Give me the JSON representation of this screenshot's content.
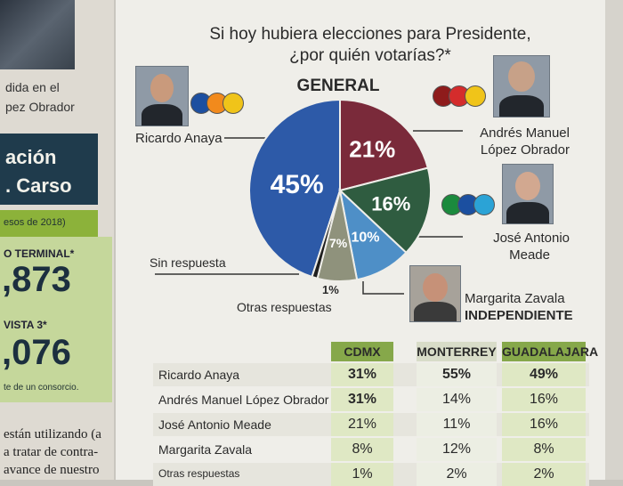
{
  "left_column": {
    "caption_lines": [
      "dida en el",
      "pez Obrador"
    ],
    "header_lines": [
      "ación",
      ". Carso"
    ],
    "subnote": "esos de 2018)",
    "stat1_label": "O TERMINAL*",
    "stat1_value": ",873",
    "stat2_label": "VISTA 3*",
    "stat2_value": ",076",
    "stat2_note": "te de un consorcio.",
    "body_lines": [
      "están utilizando (a",
      "a tratar de contra-",
      "avance de nuestro"
    ]
  },
  "chart_data": {
    "type": "pie",
    "title_lines": [
      "Si hoy hubiera elecciones para Presidente,",
      "¿por quién votarías?*"
    ],
    "subtitle": "GENERAL",
    "slices": [
      {
        "label": "Ricardo Anaya",
        "value": 45,
        "display": "45%",
        "color": "#2d5aa8"
      },
      {
        "label": "Andrés Manuel López Obrador",
        "value": 21,
        "display": "21%",
        "color": "#7a2a3a"
      },
      {
        "label": "José Antonio Meade",
        "value": 16,
        "display": "16%",
        "color": "#2f5c40"
      },
      {
        "label": "Margarita Zavala",
        "value": 10,
        "display": "10%",
        "color": "#4e8fc7"
      },
      {
        "label": "Sin respuesta",
        "value": 7,
        "display": "7%",
        "color": "#8f927c"
      },
      {
        "label": "Otras respuestas",
        "value": 1,
        "display": "1%",
        "color": "#1e1e1e"
      }
    ],
    "callouts": {
      "anaya": "Ricardo Anaya",
      "amlo_lines": [
        "Andrés Manuel",
        "López Obrador"
      ],
      "meade_lines": [
        "José Antonio",
        "Meade"
      ],
      "zavala_lines": [
        "Margarita Zavala",
        "INDEPENDIENTE"
      ],
      "sin": "Sin respuesta",
      "otras": "Otras respuestas",
      "otras_value": "1%"
    },
    "party_logo_colors": {
      "anaya": [
        "#1d4fa0",
        "#f28a1c",
        "#f0c419"
      ],
      "amlo": [
        "#8e1b1b",
        "#d42c2c",
        "#f0c419"
      ],
      "meade": [
        "#1b8a3d",
        "#1b4fa0",
        "#2ba3d6"
      ]
    },
    "table": {
      "columns": [
        "CDMX",
        "MONTERREY",
        "GUADALAJARA"
      ],
      "rows": [
        {
          "name": "Ricardo Anaya",
          "values": [
            "31%",
            "55%",
            "49%"
          ]
        },
        {
          "name": "Andrés Manuel López Obrador",
          "values": [
            "31%",
            "14%",
            "16%"
          ]
        },
        {
          "name": "José Antonio Meade",
          "values": [
            "21%",
            "11%",
            "16%"
          ]
        },
        {
          "name": "Margarita Zavala",
          "values": [
            "8%",
            "12%",
            "8%"
          ]
        },
        {
          "name": "Otras respuestas",
          "values": [
            "1%",
            "2%",
            "2%"
          ]
        }
      ]
    }
  }
}
